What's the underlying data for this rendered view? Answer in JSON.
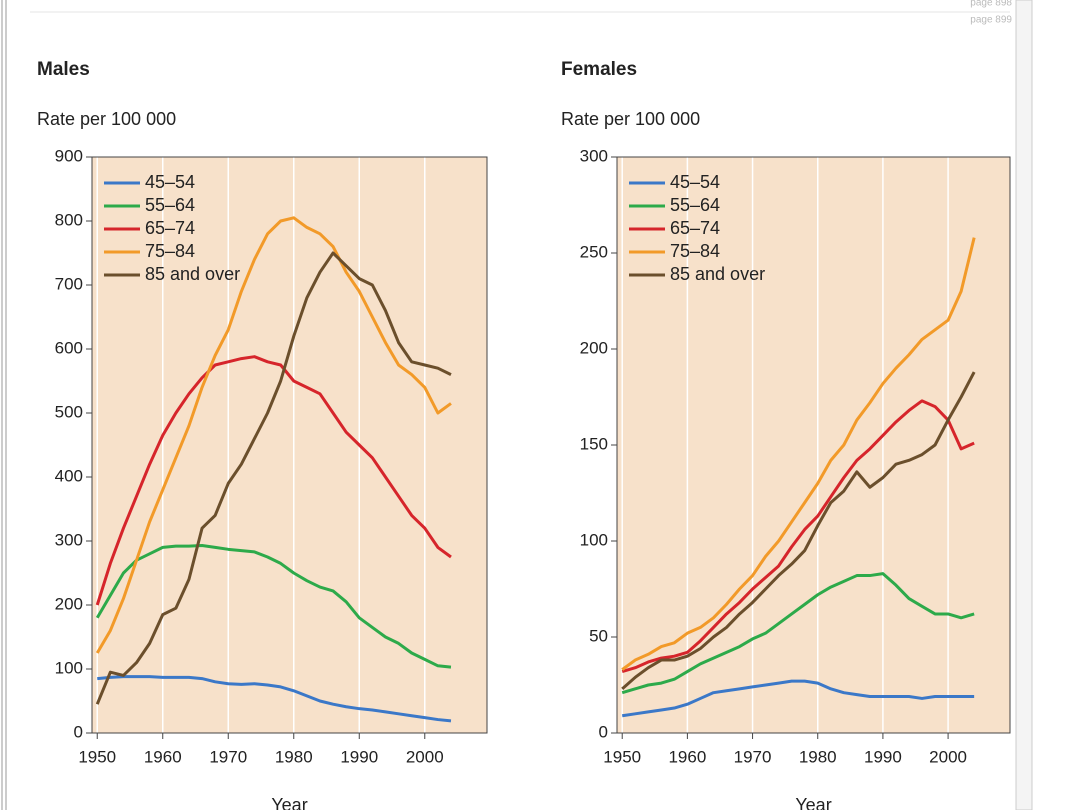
{
  "page_labels": [
    "page 898",
    "page 899"
  ],
  "chart_data": [
    {
      "type": "line",
      "title": "Males",
      "ylabel": "Rate per 100 000",
      "xlabel": "Year",
      "x": [
        1950,
        1952,
        1954,
        1956,
        1958,
        1960,
        1962,
        1964,
        1966,
        1968,
        1970,
        1972,
        1974,
        1976,
        1978,
        1980,
        1982,
        1984,
        1986,
        1988,
        1990,
        1992,
        1994,
        1996,
        1998,
        2000,
        2002,
        2004
      ],
      "xlim": [
        1949.2,
        2009.5
      ],
      "xticks": [
        1950,
        1960,
        1970,
        1980,
        1990,
        2000
      ],
      "ylim": [
        0,
        900
      ],
      "yticks": [
        0,
        100,
        200,
        300,
        400,
        500,
        600,
        700,
        800,
        900
      ],
      "grid_x": true,
      "legend": "upper left",
      "background": "#f7e1ca",
      "series": [
        {
          "name": "45–54",
          "color": "#3b78c8",
          "values": [
            85,
            87,
            88,
            88,
            88,
            87,
            87,
            87,
            85,
            80,
            77,
            76,
            77,
            75,
            72,
            66,
            58,
            50,
            45,
            41,
            38,
            36,
            33,
            30,
            27,
            24,
            21,
            19
          ]
        },
        {
          "name": "55–64",
          "color": "#2daa4a",
          "values": [
            180,
            215,
            250,
            270,
            280,
            290,
            292,
            292,
            293,
            290,
            287,
            285,
            283,
            275,
            265,
            250,
            238,
            228,
            222,
            205,
            180,
            165,
            150,
            140,
            125,
            115,
            105,
            103
          ]
        },
        {
          "name": "65–74",
          "color": "#d6252b",
          "values": [
            200,
            265,
            320,
            370,
            420,
            465,
            500,
            530,
            555,
            575,
            580,
            585,
            588,
            580,
            575,
            550,
            540,
            530,
            500,
            470,
            450,
            430,
            400,
            370,
            340,
            320,
            290,
            275
          ]
        },
        {
          "name": "75–84",
          "color": "#f29a29",
          "values": [
            125,
            160,
            210,
            270,
            330,
            380,
            430,
            480,
            540,
            590,
            630,
            690,
            740,
            780,
            800,
            805,
            790,
            780,
            760,
            720,
            690,
            650,
            610,
            575,
            560,
            540,
            500,
            515
          ]
        },
        {
          "name": "85 and over",
          "color": "#6b4f2c",
          "values": [
            45,
            95,
            90,
            110,
            140,
            185,
            195,
            240,
            320,
            340,
            390,
            420,
            460,
            500,
            550,
            620,
            680,
            720,
            750,
            730,
            710,
            700,
            660,
            610,
            580,
            575,
            570,
            560
          ]
        }
      ]
    },
    {
      "type": "line",
      "title": "Females",
      "ylabel": "Rate per 100 000",
      "xlabel": "Year",
      "x": [
        1950,
        1952,
        1954,
        1956,
        1958,
        1960,
        1962,
        1964,
        1966,
        1968,
        1970,
        1972,
        1974,
        1976,
        1978,
        1980,
        1982,
        1984,
        1986,
        1988,
        1990,
        1992,
        1994,
        1996,
        1998,
        2000,
        2002,
        2004
      ],
      "xlim": [
        1949.2,
        2009.5
      ],
      "xticks": [
        1950,
        1960,
        1970,
        1980,
        1990,
        2000
      ],
      "ylim": [
        0,
        300
      ],
      "yticks": [
        0,
        50,
        100,
        150,
        200,
        250,
        300
      ],
      "grid_x": true,
      "legend": "upper left",
      "background": "#f7e1ca",
      "series": [
        {
          "name": "45–54",
          "color": "#3b78c8",
          "values": [
            9,
            10,
            11,
            12,
            13,
            15,
            18,
            21,
            22,
            23,
            24,
            25,
            26,
            27,
            27,
            26,
            23,
            21,
            20,
            19,
            19,
            19,
            19,
            18,
            19,
            19,
            19,
            19
          ]
        },
        {
          "name": "55–64",
          "color": "#2daa4a",
          "values": [
            21,
            23,
            25,
            26,
            28,
            32,
            36,
            39,
            42,
            45,
            49,
            52,
            57,
            62,
            67,
            72,
            76,
            79,
            82,
            82,
            83,
            77,
            70,
            66,
            62,
            62,
            60,
            62
          ]
        },
        {
          "name": "65–74",
          "color": "#d6252b",
          "values": [
            32,
            34,
            37,
            39,
            40,
            42,
            48,
            55,
            62,
            68,
            75,
            81,
            87,
            97,
            106,
            113,
            123,
            133,
            142,
            148,
            155,
            162,
            168,
            173,
            170,
            163,
            148,
            151
          ]
        },
        {
          "name": "75–84",
          "color": "#f29a29",
          "values": [
            33,
            38,
            41,
            45,
            47,
            52,
            55,
            60,
            67,
            75,
            82,
            92,
            100,
            110,
            120,
            130,
            142,
            150,
            163,
            172,
            182,
            190,
            197,
            205,
            210,
            215,
            230,
            258
          ]
        },
        {
          "name": "85 and over",
          "color": "#6b4f2c",
          "values": [
            23,
            29,
            34,
            38,
            38,
            40,
            44,
            50,
            55,
            62,
            68,
            75,
            82,
            88,
            95,
            108,
            120,
            126,
            136,
            128,
            133,
            140,
            142,
            145,
            150,
            163,
            175,
            188
          ]
        }
      ]
    }
  ]
}
